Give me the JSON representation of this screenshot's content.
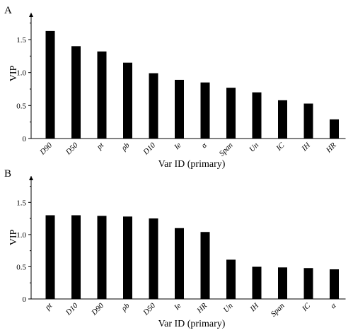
{
  "chart_data": [
    {
      "panel": "A",
      "type": "bar",
      "title": "",
      "xlabel": "Var ID (primary)",
      "ylabel": "VIP",
      "ylim": [
        0,
        1.8
      ],
      "yticks": [
        "0",
        "0.5",
        "1.0",
        "1.5"
      ],
      "grid": false,
      "bar_color": "#000000",
      "categories": [
        "D90",
        "D50",
        "pt",
        "ρb",
        "D10",
        "Ie",
        "α",
        "Span",
        "Un",
        "IC",
        "IH",
        "HR"
      ],
      "values": [
        1.63,
        1.4,
        1.32,
        1.15,
        0.99,
        0.89,
        0.85,
        0.77,
        0.7,
        0.58,
        0.53,
        0.29
      ]
    },
    {
      "panel": "B",
      "type": "bar",
      "title": "",
      "xlabel": "Var ID (primary)",
      "ylabel": "VIP",
      "ylim": [
        0,
        1.8
      ],
      "yticks": [
        "0",
        "0.5",
        "1.0",
        "1.5"
      ],
      "grid": false,
      "bar_color": "#000000",
      "categories": [
        "pt",
        "D10",
        "D90",
        "ρb",
        "D50",
        "Ie",
        "HR",
        "Un",
        "IH",
        "Span",
        "IC",
        "α"
      ],
      "values": [
        1.3,
        1.3,
        1.29,
        1.28,
        1.25,
        1.1,
        1.04,
        0.61,
        0.5,
        0.49,
        0.48,
        0.46
      ]
    }
  ]
}
